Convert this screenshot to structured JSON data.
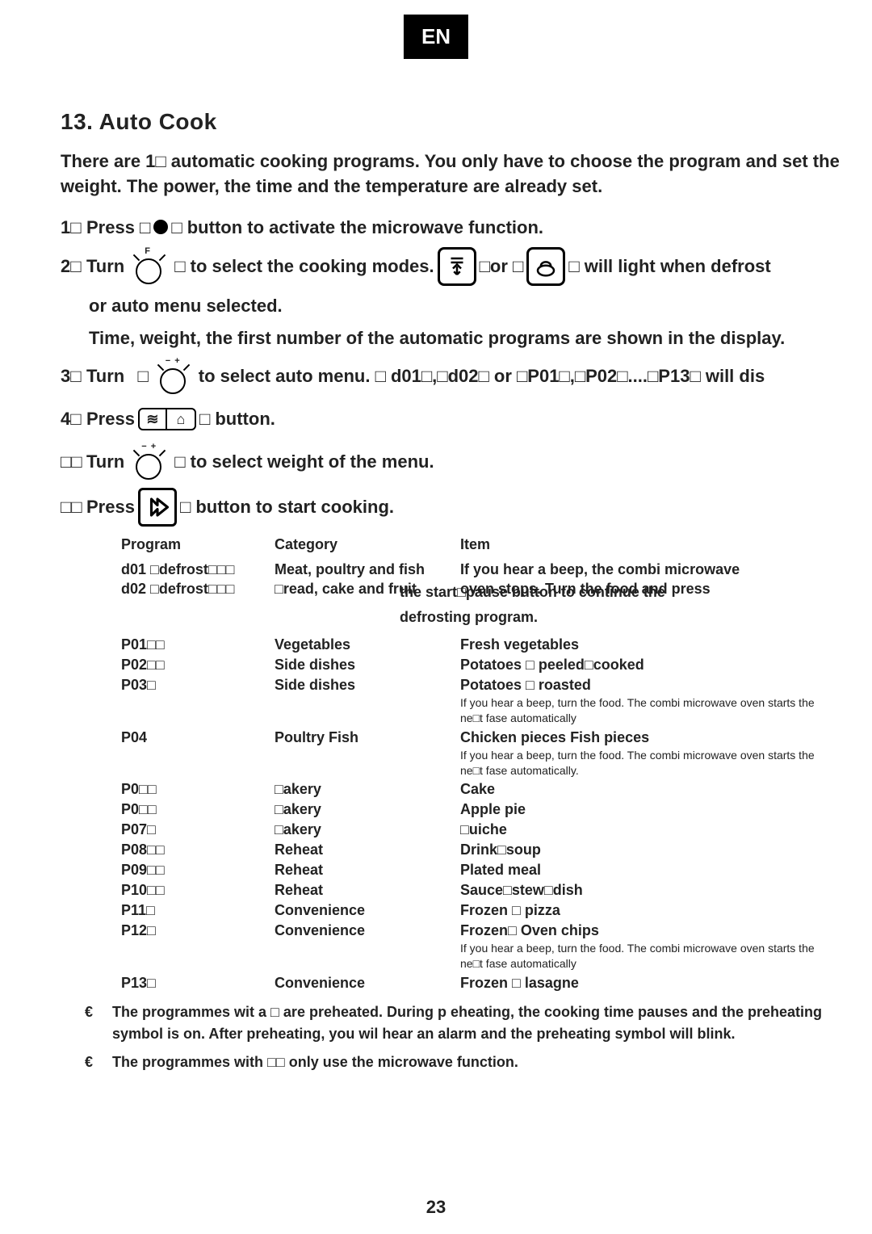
{
  "lang_tab": "EN",
  "section_title": "13. Auto Cook",
  "intro": "There are 1□ automatic cooking programs. You only have to choose the program and set the weight. The power, the time and the temperature are already set.",
  "steps": {
    "s1_num": "1□",
    "s1_a": "Press □",
    "s1_b": "□ button to activate the microwave function.",
    "s2_num": "2□",
    "s2_a": "Turn",
    "s2_b": "□ to select the cooking modes.",
    "s2_c": "□or  □",
    "s2_d": "□ will light when defrost",
    "s2_extra": "or auto menu selected.",
    "s2_extra2": "Time, weight, the first number of the automatic programs are shown in the display.",
    "s3_num": "3□",
    "s3_a": "Turn",
    "s3_b": "to select auto menu. □ d01□,□d02□  or  □P01□,□P02□....□P13□ will dis",
    "s4_num": "4□",
    "s4_a": "Press",
    "s4_b": "□ button.",
    "s5_num": "□□",
    "s5_a": "Turn",
    "s5_b": "□ to select weight of the menu.",
    "s6_num": "□□",
    "s6_a": "Press",
    "s6_b": "□ button to start cooking."
  },
  "table": {
    "headers": {
      "prog": "Program",
      "cat": "Category",
      "item": "Item"
    },
    "d01": {
      "prog": "d01 □defrost□□□",
      "cat": "Meat, poultry and  fish",
      "item": "If you hear a beep, the combi microwave"
    },
    "d02": {
      "prog": "d02 □defrost□□□",
      "cat": "□read, cake and fruit",
      "item": "oven stops. Turn the food and press"
    },
    "d_note_l2": "the start□pause button to continue the",
    "d_note_l3": "defrosting program.",
    "rows": [
      {
        "prog": "P01□□",
        "cat": "Vegetables",
        "item": "Fresh vegetables",
        "note": ""
      },
      {
        "prog": "P02□□",
        "cat": "Side dishes",
        "item": "Potatoes □ peeled□cooked",
        "note": ""
      },
      {
        "prog": "P03□",
        "cat": "Side dishes",
        "item": "Potatoes □ roasted",
        "note": "If you hear a beep, turn the food. The combi microwave oven starts the ne□t fase automatically"
      },
      {
        "prog": "P04",
        "cat": "Poultry Fish",
        "item": "Chicken pieces Fish pieces",
        "note": "If you hear a beep, turn the food. The combi microwave oven starts the ne□t fase automatically."
      },
      {
        "prog": "P0□□",
        "cat": "□akery",
        "item": "Cake",
        "note": ""
      },
      {
        "prog": "P0□□",
        "cat": "□akery",
        "item": "Apple pie",
        "note": ""
      },
      {
        "prog": "P07□",
        "cat": "□akery",
        "item": "□uiche",
        "note": ""
      },
      {
        "prog": "P08□□",
        "cat": "Reheat",
        "item": "Drink□soup",
        "note": ""
      },
      {
        "prog": "P09□□",
        "cat": "Reheat",
        "item": "Plated meal",
        "note": ""
      },
      {
        "prog": "P10□□",
        "cat": "Reheat",
        "item": "Sauce□stew□dish",
        "note": ""
      },
      {
        "prog": "P11□",
        "cat": "Convenience",
        "item": "Frozen □ pizza",
        "note": ""
      },
      {
        "prog": "P12□",
        "cat": "Convenience",
        "item": "Frozen□ Oven chips",
        "note": "If you hear a beep, turn the food. The combi microwave oven starts the ne□t fase automatically"
      },
      {
        "prog": "P13□",
        "cat": "Convenience",
        "item": "Frozen □ lasagne",
        "note": ""
      }
    ]
  },
  "footer": {
    "note1": "The programmes wit a □ are preheated. During p eheating, the cooking time pauses and the preheating symbol is on. After preheating, you wil hear an alarm and the preheating symbol will blink.",
    "note2": "The programmes with □□ only use the microwave function.",
    "bullet": "€"
  },
  "page_num": "23"
}
